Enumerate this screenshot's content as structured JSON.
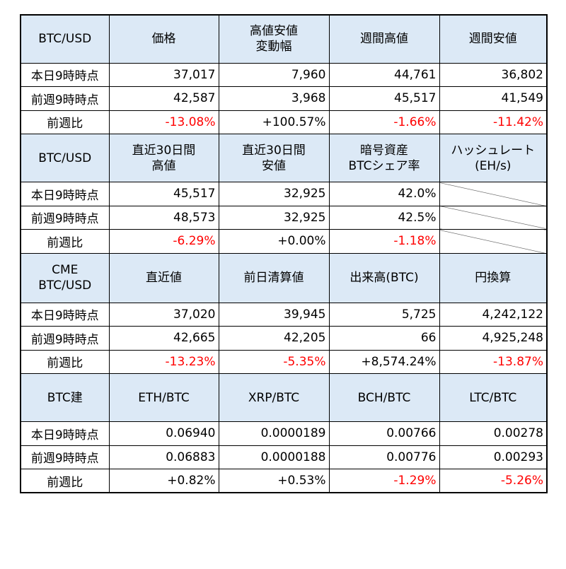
{
  "sections": [
    {
      "headers": [
        "BTC/USD",
        "価格",
        "高値安値\n変動幅",
        "週間高値",
        "週間安値"
      ],
      "rows": [
        {
          "label": "本日9時時点",
          "cells": [
            {
              "v": "37,017"
            },
            {
              "v": "7,960"
            },
            {
              "v": "44,761"
            },
            {
              "v": "36,802"
            }
          ]
        },
        {
          "label": "前週9時時点",
          "cells": [
            {
              "v": "42,587"
            },
            {
              "v": "3,968"
            },
            {
              "v": "45,517"
            },
            {
              "v": "41,549"
            }
          ]
        },
        {
          "label": "前週比",
          "cells": [
            {
              "v": "-13.08%",
              "neg": true
            },
            {
              "v": "+100.57%"
            },
            {
              "v": "-1.66%",
              "neg": true
            },
            {
              "v": "-11.42%",
              "neg": true
            }
          ]
        }
      ]
    },
    {
      "headers": [
        "BTC/USD",
        "直近30日間\n高値",
        "直近30日間\n安値",
        "暗号資産\nBTCシェア率",
        "ハッシュレート\n(EH/s)"
      ],
      "rows": [
        {
          "label": "本日9時時点",
          "cells": [
            {
              "v": "45,517"
            },
            {
              "v": "32,925"
            },
            {
              "v": "42.0%"
            },
            {
              "v": "",
              "diag": true
            }
          ]
        },
        {
          "label": "前週9時時点",
          "cells": [
            {
              "v": "48,573"
            },
            {
              "v": "32,925"
            },
            {
              "v": "42.5%"
            },
            {
              "v": "",
              "diag": true
            }
          ]
        },
        {
          "label": "前週比",
          "cells": [
            {
              "v": "-6.29%",
              "neg": true
            },
            {
              "v": "+0.00%"
            },
            {
              "v": "-1.18%",
              "neg": true
            },
            {
              "v": "",
              "diag": true
            }
          ]
        }
      ]
    },
    {
      "headers": [
        "CME\nBTC/USD",
        "直近値",
        "前日清算値",
        "出来高(BTC)",
        "円換算"
      ],
      "rows": [
        {
          "label": "本日9時時点",
          "cells": [
            {
              "v": "37,020"
            },
            {
              "v": "39,945"
            },
            {
              "v": "5,725"
            },
            {
              "v": "4,242,122"
            }
          ]
        },
        {
          "label": "前週9時時点",
          "cells": [
            {
              "v": "42,665"
            },
            {
              "v": "42,205"
            },
            {
              "v": "66"
            },
            {
              "v": "4,925,248"
            }
          ]
        },
        {
          "label": "前週比",
          "cells": [
            {
              "v": "-13.23%",
              "neg": true
            },
            {
              "v": "-5.35%",
              "neg": true
            },
            {
              "v": "+8,574.24%"
            },
            {
              "v": "-13.87%",
              "neg": true
            }
          ]
        }
      ]
    },
    {
      "headers": [
        "BTC建",
        "ETH/BTC",
        "XRP/BTC",
        "BCH/BTC",
        "LTC/BTC"
      ],
      "rows": [
        {
          "label": "本日9時時点",
          "cells": [
            {
              "v": "0.06940"
            },
            {
              "v": "0.0000189"
            },
            {
              "v": "0.00766"
            },
            {
              "v": "0.00278"
            }
          ]
        },
        {
          "label": "前週9時時点",
          "cells": [
            {
              "v": "0.06883"
            },
            {
              "v": "0.0000188"
            },
            {
              "v": "0.00776"
            },
            {
              "v": "0.00293"
            }
          ]
        },
        {
          "label": "前週比",
          "cells": [
            {
              "v": "+0.82%"
            },
            {
              "v": "+0.53%"
            },
            {
              "v": "-1.29%",
              "neg": true
            },
            {
              "v": "-5.26%",
              "neg": true
            }
          ]
        }
      ]
    }
  ]
}
